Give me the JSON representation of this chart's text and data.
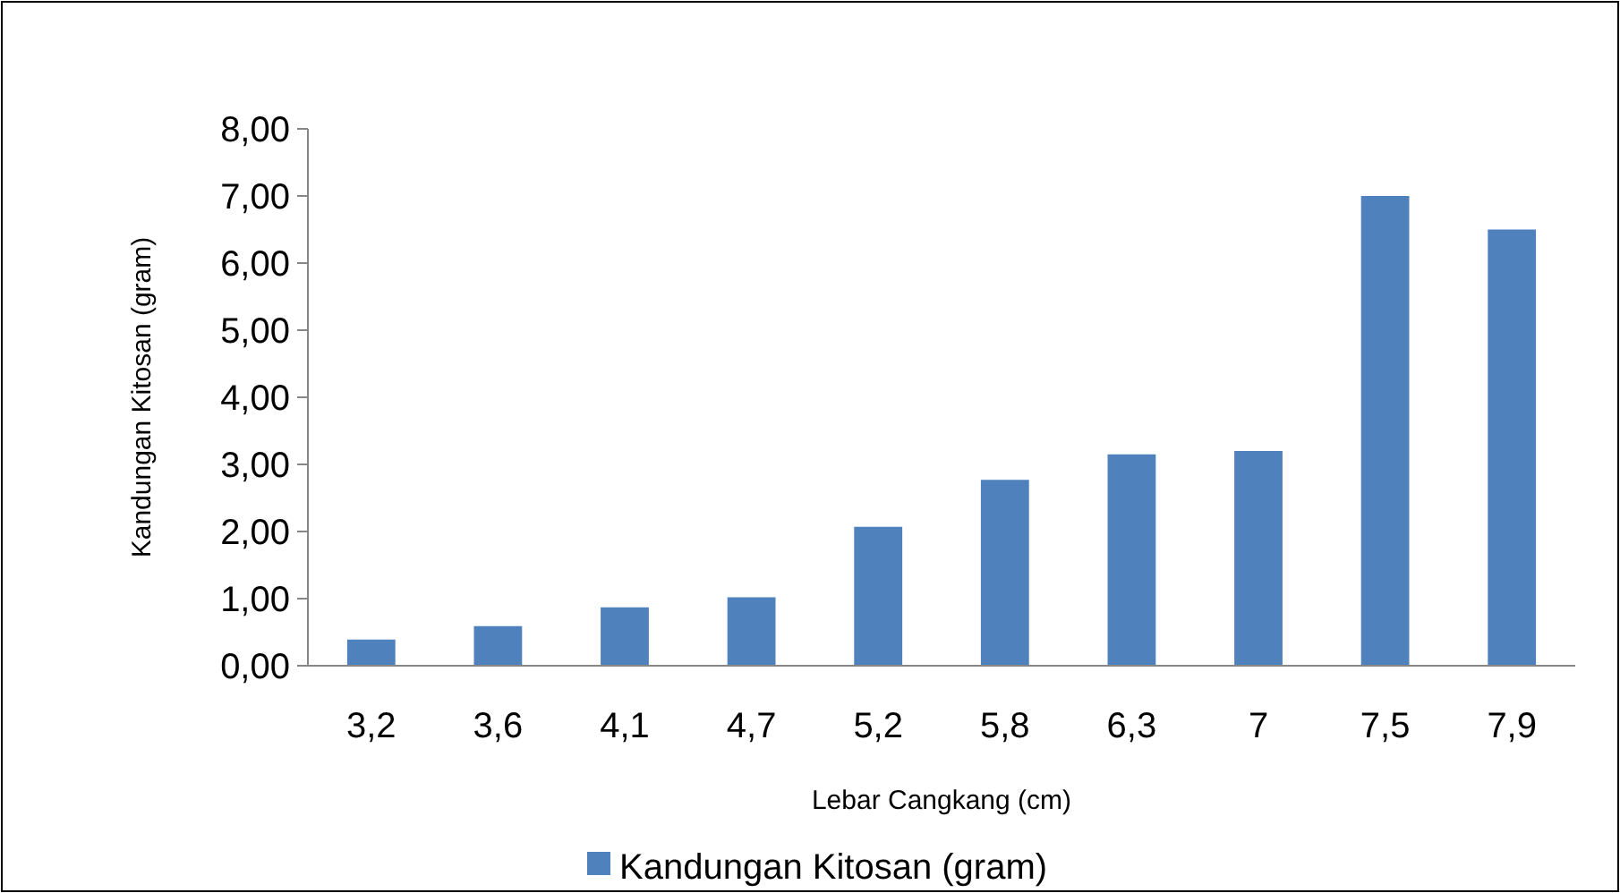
{
  "chart_data": {
    "type": "bar",
    "xlabel": "Lebar Cangkang (cm)",
    "ylabel": "Kandungan Kitosan (gram)",
    "categories": [
      "3,2",
      "3,6",
      "4,1",
      "4,7",
      "5,2",
      "5,8",
      "6,3",
      "7",
      "7,5",
      "7,9"
    ],
    "series": [
      {
        "name": "Kandungan Kitosan (gram)",
        "color": "#4f81bd",
        "values": [
          0.39,
          0.59,
          0.87,
          1.02,
          2.07,
          2.77,
          3.15,
          3.2,
          7.0,
          6.5
        ]
      }
    ],
    "ylim": [
      0,
      8
    ],
    "yticks": [
      {
        "value": 0,
        "label": "0,00"
      },
      {
        "value": 1,
        "label": "1,00"
      },
      {
        "value": 2,
        "label": "2,00"
      },
      {
        "value": 3,
        "label": "3,00"
      },
      {
        "value": 4,
        "label": "4,00"
      },
      {
        "value": 5,
        "label": "5,00"
      },
      {
        "value": 6,
        "label": "6,00"
      },
      {
        "value": 7,
        "label": "7,00"
      },
      {
        "value": 8,
        "label": "8,00"
      }
    ],
    "grid": false,
    "legend": "bottom"
  }
}
